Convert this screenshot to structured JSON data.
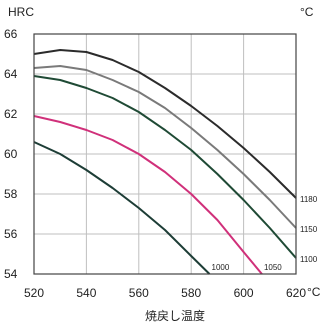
{
  "chart_data": {
    "type": "line",
    "ylabel": "HRC",
    "yunit_corner": "°C",
    "xlabel": "焼戻し温度",
    "xunit": "°C",
    "xlim": [
      520,
      620
    ],
    "ylim": [
      54,
      66
    ],
    "grid": true,
    "x_ticks": [
      520,
      540,
      560,
      580,
      600,
      620
    ],
    "y_ticks": [
      54,
      56,
      58,
      60,
      62,
      64,
      66
    ],
    "series": [
      {
        "name": "1180",
        "color": "#2b2b2b",
        "x": [
          520,
          530,
          540,
          550,
          560,
          570,
          580,
          590,
          600,
          610,
          620
        ],
        "y": [
          65.0,
          65.2,
          65.1,
          64.7,
          64.1,
          63.3,
          62.4,
          61.4,
          60.3,
          59.1,
          57.8
        ]
      },
      {
        "name": "1150",
        "color": "#7a7a7a",
        "x": [
          520,
          530,
          540,
          550,
          560,
          570,
          580,
          590,
          600,
          610,
          620
        ],
        "y": [
          64.3,
          64.4,
          64.2,
          63.7,
          63.1,
          62.3,
          61.3,
          60.2,
          59.0,
          57.7,
          56.3
        ]
      },
      {
        "name": "1100",
        "color": "#1f4a35",
        "x": [
          520,
          530,
          540,
          550,
          560,
          570,
          580,
          590,
          600,
          610,
          620
        ],
        "y": [
          63.9,
          63.7,
          63.3,
          62.8,
          62.1,
          61.2,
          60.2,
          59.0,
          57.7,
          56.3,
          54.8
        ]
      },
      {
        "name": "1050",
        "color": "#d0307a",
        "x": [
          520,
          530,
          540,
          550,
          560,
          570,
          580,
          590,
          600,
          607
        ],
        "y": [
          61.9,
          61.6,
          61.2,
          60.7,
          60.0,
          59.1,
          58.0,
          56.7,
          55.1,
          54.0
        ]
      },
      {
        "name": "1000",
        "color": "#1d3d36",
        "x": [
          520,
          530,
          540,
          550,
          560,
          570,
          580,
          587
        ],
        "y": [
          60.6,
          60.0,
          59.2,
          58.3,
          57.3,
          56.2,
          54.9,
          54.0
        ]
      }
    ]
  }
}
